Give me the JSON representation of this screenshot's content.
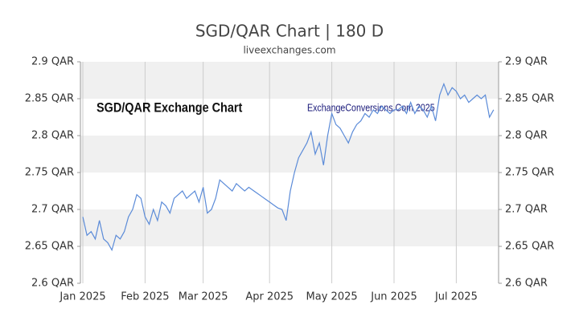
{
  "chart_data": {
    "type": "line",
    "title": "SGD/QAR Chart | 180 D",
    "subtitle": "liveexchanges.com",
    "annotations": [
      "SGD/QAR Exchange Chart",
      "ExchangeConversions.Com 2025"
    ],
    "categories": [
      "Jan 2025",
      null,
      null,
      null,
      null,
      null,
      null,
      null,
      null,
      null,
      null,
      null,
      null,
      null,
      null,
      "Feb 2025",
      null,
      null,
      null,
      null,
      null,
      null,
      null,
      null,
      null,
      null,
      null,
      null,
      null,
      "Mar 2025",
      null,
      null,
      null,
      null,
      null,
      null,
      null,
      null,
      null,
      null,
      null,
      null,
      null,
      null,
      null,
      "Apr 2025",
      null,
      null,
      null,
      null,
      null,
      null,
      null,
      null,
      null,
      null,
      null,
      null,
      null,
      null,
      "May 2025",
      null,
      null,
      null,
      null,
      null,
      null,
      null,
      null,
      null,
      null,
      null,
      null,
      null,
      null,
      "Jun 2025",
      null,
      null,
      null,
      null,
      null,
      null,
      null,
      null,
      null,
      null,
      null,
      null,
      null,
      null,
      "Jul 2025",
      null,
      null,
      null,
      null,
      null,
      null,
      null,
      null,
      null
    ],
    "series": [
      {
        "name": "SGD/QAR",
        "color": "#5b8bd8",
        "values": [
          2.69,
          2.665,
          2.67,
          2.66,
          2.685,
          2.66,
          2.655,
          2.645,
          2.665,
          2.66,
          2.67,
          2.69,
          2.7,
          2.72,
          2.715,
          2.69,
          2.68,
          2.7,
          2.685,
          2.71,
          2.705,
          2.695,
          2.715,
          2.72,
          2.725,
          2.715,
          2.72,
          2.725,
          2.71,
          2.73,
          2.695,
          2.7,
          2.715,
          2.74,
          2.735,
          2.73,
          2.725,
          2.735,
          2.73,
          2.725,
          2.73,
          2.726,
          2.722,
          2.718,
          2.714,
          2.71,
          2.706,
          2.702,
          2.7,
          2.685,
          2.725,
          2.75,
          2.77,
          2.78,
          2.79,
          2.805,
          2.775,
          2.79,
          2.76,
          2.8,
          2.83,
          2.815,
          2.81,
          2.8,
          2.79,
          2.805,
          2.815,
          2.82,
          2.83,
          2.825,
          2.835,
          2.83,
          2.84,
          2.835,
          2.83,
          2.835,
          2.835,
          2.84,
          2.83,
          2.845,
          2.83,
          2.84,
          2.835,
          2.825,
          2.84,
          2.82,
          2.855,
          2.87,
          2.855,
          2.865,
          2.86,
          2.85,
          2.855,
          2.845,
          2.85,
          2.855,
          2.85,
          2.855,
          2.825,
          2.835
        ]
      }
    ],
    "ylim": [
      2.6,
      2.9
    ],
    "yticks": [
      {
        "value": 2.6,
        "label": "2.6 QAR"
      },
      {
        "value": 2.65,
        "label": "2.65 QAR"
      },
      {
        "value": 2.7,
        "label": "2.7 QAR"
      },
      {
        "value": 2.75,
        "label": "2.75 QAR"
      },
      {
        "value": 2.8,
        "label": "2.8 QAR"
      },
      {
        "value": 2.85,
        "label": "2.85 QAR"
      },
      {
        "value": 2.9,
        "label": "2.9 QAR"
      }
    ],
    "y2lim": [
      2.6,
      2.9
    ],
    "y2ticks": [
      {
        "value": 2.6,
        "label": "2.6 QAR"
      },
      {
        "value": 2.65,
        "label": "2.65 QAR"
      },
      {
        "value": 2.7,
        "label": "2.7 QAR"
      },
      {
        "value": 2.75,
        "label": "2.75 QAR"
      },
      {
        "value": 2.8,
        "label": "2.8 QAR"
      },
      {
        "value": 2.85,
        "label": "2.85 QAR"
      },
      {
        "value": 2.9,
        "label": "2.9 QAR"
      }
    ],
    "grid": true
  }
}
